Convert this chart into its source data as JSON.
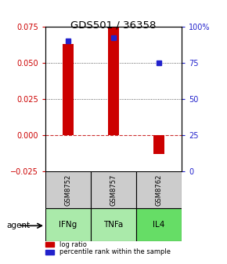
{
  "title": "GDS501 / 36358",
  "samples": [
    "GSM8752",
    "GSM8757",
    "GSM8762"
  ],
  "agents": [
    "IFNg",
    "TNFa",
    "IL4"
  ],
  "log_ratios": [
    0.063,
    0.075,
    -0.013
  ],
  "percentile_ranks": [
    0.9,
    0.92,
    0.75
  ],
  "ylim_left": [
    -0.025,
    0.075
  ],
  "ylim_right": [
    0,
    1.0
  ],
  "yticks_left": [
    -0.025,
    0,
    0.025,
    0.05,
    0.075
  ],
  "yticks_right": [
    0,
    0.25,
    0.5,
    0.75,
    1.0
  ],
  "ytick_labels_right": [
    "0",
    "25",
    "50",
    "75",
    "100%"
  ],
  "bar_color": "#cc0000",
  "dot_color": "#2222cc",
  "left_tick_color": "#cc0000",
  "right_tick_color": "#2222cc",
  "agent_colors": [
    "#aaeaaa",
    "#aaeaaa",
    "#66dd66"
  ],
  "sample_bg_color": "#cccccc",
  "zero_line_color": "#cc3333",
  "dotted_line_color": "#333333",
  "bar_width": 0.25,
  "legend_log_label": "log ratio",
  "legend_pct_label": "percentile rank within the sample"
}
